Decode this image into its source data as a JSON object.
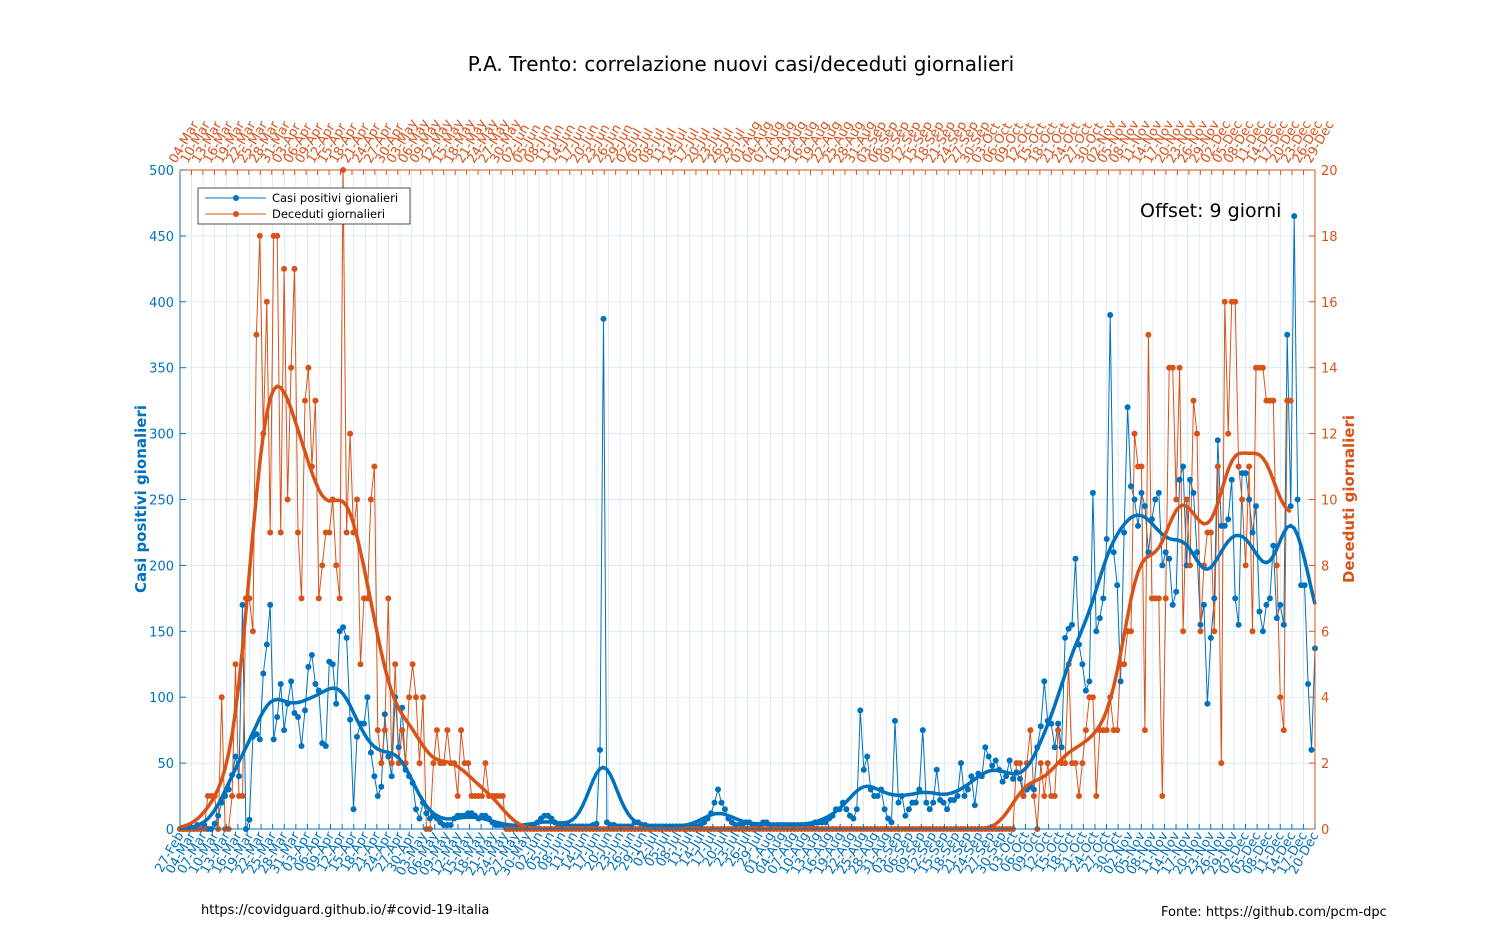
{
  "chart_data": {
    "type": "line",
    "title": "P.A. Trento: correlazione nuovi casi/deceduti giornalieri",
    "ylabel_left": "Casi positivi gionalieri",
    "ylabel_right": "Deceduti giornalieri",
    "annotation": "Offset: 9 giorni",
    "ylim_left": [
      0,
      500
    ],
    "ylim_right": [
      0,
      20
    ],
    "yticks_left": [
      0,
      50,
      100,
      150,
      200,
      250,
      300,
      350,
      400,
      450,
      500
    ],
    "yticks_right": [
      0,
      2,
      4,
      6,
      8,
      10,
      12,
      14,
      16,
      18,
      20
    ],
    "grid": true,
    "legend_position": "top-left",
    "colors": {
      "cases": "#0072BD",
      "deaths": "#D95319"
    },
    "x_bottom": {
      "start": "27-Feb",
      "tick_labels": [
        "27-Feb",
        "04-Mar",
        "07-Mar",
        "10-Mar",
        "13-Mar",
        "16-Mar",
        "19-Mar",
        "22-Mar",
        "25-Mar",
        "28-Mar",
        "31-Mar",
        "03-Apr",
        "06-Apr",
        "09-Apr",
        "12-Apr",
        "15-Apr",
        "18-Apr",
        "21-Apr",
        "24-Apr",
        "27-Apr",
        "30-Apr",
        "03-May",
        "06-May",
        "09-May",
        "12-May",
        "15-May",
        "18-May",
        "21-May",
        "24-May",
        "27-May",
        "30-May",
        "02-Jun",
        "05-Jun",
        "08-Jun",
        "11-Jun",
        "14-Jun",
        "17-Jun",
        "20-Jun",
        "23-Jun",
        "26-Jun",
        "29-Jun",
        "02-Jul",
        "05-Jul",
        "08-Jul",
        "11-Jul",
        "14-Jul",
        "17-Jul",
        "20-Jul",
        "23-Jul",
        "26-Jul",
        "29-Jul",
        "01-Aug",
        "04-Aug",
        "07-Aug",
        "10-Aug",
        "13-Aug",
        "16-Aug",
        "19-Aug",
        "22-Aug",
        "25-Aug",
        "28-Aug",
        "31-Aug",
        "03-Sep",
        "06-Sep",
        "09-Sep",
        "12-Sep",
        "15-Sep",
        "18-Sep",
        "21-Sep",
        "24-Sep",
        "27-Sep",
        "30-Sep",
        "03-Oct",
        "06-Oct",
        "09-Oct",
        "12-Oct",
        "15-Oct",
        "18-Oct",
        "21-Oct",
        "24-Oct",
        "27-Oct",
        "30-Oct",
        "02-Nov",
        "05-Nov",
        "08-Nov",
        "11-Nov",
        "14-Nov",
        "17-Nov",
        "20-Nov",
        "23-Nov",
        "26-Nov",
        "29-Nov",
        "02-Dec",
        "05-Dec",
        "08-Dec",
        "11-Dec",
        "14-Dec",
        "17-Dec",
        "20-Dec"
      ]
    },
    "x_top": {
      "start": "07-Mar",
      "tick_labels": [
        "04-Mar",
        "10-Mar",
        "13-Mar",
        "16-Mar",
        "19-Mar",
        "22-Mar",
        "25-Mar",
        "28-Mar",
        "31-Mar",
        "03-Apr",
        "06-Apr",
        "09-Apr",
        "12-Apr",
        "15-Apr",
        "18-Apr",
        "21-Apr",
        "24-Apr",
        "27-Apr",
        "30-Apr",
        "03-May",
        "06-May",
        "09-May",
        "12-May",
        "15-May",
        "18-May",
        "21-May",
        "24-May",
        "27-May",
        "30-May",
        "02-Jun",
        "05-Jun",
        "08-Jun",
        "11-Jun",
        "14-Jun",
        "17-Jun",
        "20-Jun",
        "23-Jun",
        "26-Jun",
        "29-Jun",
        "02-Jul",
        "05-Jul",
        "08-Jul",
        "11-Jul",
        "14-Jul",
        "17-Jul",
        "20-Jul",
        "23-Jul",
        "26-Jul",
        "29-Jul",
        "01-Aug",
        "04-Aug",
        "07-Aug",
        "10-Aug",
        "13-Aug",
        "16-Aug",
        "19-Aug",
        "22-Aug",
        "25-Aug",
        "28-Aug",
        "31-Aug",
        "03-Sep",
        "06-Sep",
        "09-Sep",
        "12-Sep",
        "15-Sep",
        "18-Sep",
        "21-Sep",
        "24-Sep",
        "27-Sep",
        "30-Sep",
        "03-Oct",
        "06-Oct",
        "09-Oct",
        "12-Oct",
        "15-Oct",
        "18-Oct",
        "21-Oct",
        "24-Oct",
        "27-Oct",
        "30-Oct",
        "02-Nov",
        "05-Nov",
        "08-Nov",
        "11-Nov",
        "14-Nov",
        "17-Nov",
        "20-Nov",
        "23-Nov",
        "26-Nov",
        "29-Nov",
        "02-Dec",
        "05-Dec",
        "08-Dec",
        "11-Dec",
        "14-Dec",
        "17-Dec",
        "20-Dec",
        "23-Dec",
        "26-Dec",
        "29-Dec"
      ]
    },
    "series": [
      {
        "name": "Casi positivi gionalieri",
        "axis": "left",
        "values": [
          0,
          0,
          0,
          0,
          0,
          3,
          0,
          3,
          0,
          0,
          4,
          10,
          20,
          25,
          30,
          41,
          55,
          40,
          170,
          0,
          7,
          70,
          72,
          68,
          118,
          140,
          170,
          68,
          85,
          110,
          75,
          95,
          112,
          88,
          85,
          63,
          90,
          123,
          132,
          110,
          105,
          65,
          63,
          127,
          125,
          95,
          150,
          153,
          145,
          83,
          15,
          70,
          80,
          80,
          100,
          58,
          40,
          25,
          32,
          87,
          55,
          40,
          100,
          62,
          92,
          45,
          40,
          35,
          15,
          8,
          20,
          12,
          8,
          10,
          8,
          5,
          3,
          3,
          3,
          8,
          10,
          10,
          10,
          12,
          12,
          10,
          8,
          10,
          10,
          8,
          5,
          3,
          3,
          3,
          2,
          2,
          2,
          2,
          2,
          2,
          2,
          2,
          2,
          5,
          8,
          10,
          10,
          8,
          5,
          3,
          3,
          3,
          2,
          2,
          2,
          2,
          2,
          2,
          2,
          3,
          4,
          60,
          387,
          5,
          3,
          3,
          2,
          2,
          2,
          2,
          2,
          5,
          5,
          3,
          3,
          2,
          2,
          2,
          2,
          2,
          2,
          2,
          2,
          2,
          2,
          2,
          2,
          2,
          2,
          2,
          3,
          5,
          8,
          12,
          20,
          30,
          20,
          15,
          8,
          5,
          3,
          3,
          3,
          5,
          5,
          3,
          3,
          3,
          5,
          5,
          3,
          3,
          3,
          3,
          3,
          3,
          3,
          3,
          3,
          3,
          3,
          3,
          3,
          5,
          5,
          5,
          5,
          8,
          10,
          15,
          15,
          20,
          15,
          10,
          8,
          15,
          90,
          45,
          55,
          30,
          25,
          25,
          30,
          15,
          8,
          5,
          82,
          20,
          25,
          10,
          15,
          20,
          20,
          30,
          75,
          20,
          15,
          20,
          45,
          22,
          20,
          15,
          22,
          22,
          25,
          50,
          25,
          30,
          40,
          18,
          42,
          40,
          62,
          55,
          48,
          52,
          45,
          36,
          40,
          52,
          38,
          43,
          38,
          25,
          30,
          32,
          30,
          62,
          78,
          112,
          82,
          80,
          62,
          80,
          62,
          145,
          152,
          155,
          205,
          140,
          125,
          105,
          112,
          255,
          150,
          160,
          175,
          220,
          390,
          210,
          185,
          112,
          225,
          320,
          260,
          250,
          230,
          255,
          245,
          210,
          235,
          250,
          255,
          200,
          210,
          205,
          170,
          180,
          265,
          275,
          200,
          265,
          255,
          210,
          155,
          170,
          95,
          145,
          175,
          295,
          230,
          230,
          235,
          265,
          175,
          155,
          270,
          270,
          250,
          225,
          245,
          165,
          150,
          170,
          175,
          215,
          160,
          170,
          155,
          375,
          245,
          465,
          250,
          185,
          185,
          110,
          60,
          137
        ]
      },
      {
        "name": "Deceduti giornalieri",
        "axis": "right",
        "values": [
          0,
          0,
          0,
          0,
          0,
          0,
          0,
          0,
          1,
          1,
          1,
          0,
          4,
          0,
          0,
          1,
          5,
          1,
          1,
          7,
          7,
          6,
          15,
          18,
          12,
          16,
          9,
          18,
          18,
          9,
          17,
          10,
          14,
          17,
          9,
          7,
          13,
          14,
          11,
          13,
          7,
          8,
          9,
          9,
          10,
          8,
          7,
          20,
          9,
          12,
          9,
          10,
          5,
          7,
          7,
          10,
          11,
          3,
          2,
          3,
          7,
          2,
          5,
          2,
          3,
          2,
          4,
          5,
          4,
          2,
          4,
          0,
          0,
          2,
          3,
          2,
          2,
          3,
          2,
          2,
          1,
          3,
          2,
          2,
          1,
          1,
          1,
          1,
          2,
          1,
          1,
          1,
          1,
          1,
          0,
          0,
          0,
          0,
          0,
          0,
          0,
          0,
          0,
          0,
          0,
          0,
          0,
          0,
          0,
          0,
          0,
          0,
          0,
          0,
          0,
          0,
          0,
          0,
          0,
          0,
          0,
          0,
          0,
          0,
          0,
          0,
          0,
          0,
          0,
          0,
          0,
          0,
          0,
          0,
          0,
          0,
          0,
          0,
          0,
          0,
          0,
          0,
          0,
          0,
          0,
          0,
          0,
          0,
          0,
          0,
          0,
          0,
          0,
          0,
          0,
          0,
          0,
          0,
          0,
          0,
          0,
          0,
          0,
          0,
          0,
          0,
          0,
          0,
          0,
          0,
          0,
          0,
          0,
          0,
          0,
          0,
          0,
          0,
          0,
          0,
          0,
          0,
          0,
          0,
          0,
          0,
          0,
          0,
          0,
          0,
          0,
          0,
          0,
          0,
          0,
          0,
          0,
          0,
          0,
          0,
          0,
          0,
          0,
          0,
          0,
          0,
          0,
          0,
          0,
          0,
          0,
          0,
          0,
          0,
          0,
          0,
          0,
          0,
          0,
          0,
          0,
          0,
          0,
          0,
          0,
          0,
          0,
          0,
          0,
          0,
          0,
          0,
          0,
          0,
          0,
          0,
          0,
          0,
          0,
          0,
          0,
          2,
          2,
          1,
          2,
          3,
          1,
          0,
          2,
          1,
          2,
          1,
          1,
          3,
          2,
          2,
          5,
          2,
          2,
          1,
          2,
          3,
          4,
          4,
          1,
          3,
          3,
          3,
          4,
          3,
          3,
          5,
          5,
          6,
          6,
          12,
          11,
          11,
          3,
          15,
          7,
          7,
          7,
          1,
          7,
          14,
          14,
          10,
          14,
          6,
          10,
          8,
          13,
          12,
          6,
          8,
          9,
          9,
          6,
          11,
          2,
          16,
          12,
          16,
          16,
          11,
          10,
          8,
          11,
          6,
          14,
          14,
          14,
          13,
          13,
          13,
          8,
          4,
          3,
          13,
          13
        ]
      }
    ]
  },
  "footer": {
    "left": "https://covidguard.github.io/#covid-19-italia",
    "right": "Fonte: https://github.com/pcm-dpc"
  }
}
